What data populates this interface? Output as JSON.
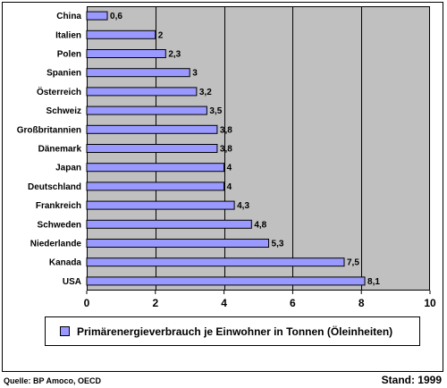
{
  "chart_data": {
    "type": "bar",
    "orientation": "horizontal",
    "categories": [
      "China",
      "Italien",
      "Polen",
      "Spanien",
      "Österreich",
      "Schweiz",
      "Großbritannien",
      "Dänemark",
      "Japan",
      "Deutschland",
      "Frankreich",
      "Schweden",
      "Niederlande",
      "Kanada",
      "USA"
    ],
    "values": [
      0.6,
      2,
      2.3,
      3,
      3.2,
      3.5,
      3.8,
      3.8,
      4,
      4,
      4.3,
      4.8,
      5.3,
      7.5,
      8.1
    ],
    "value_labels": [
      "0,6",
      "2",
      "2,3",
      "3",
      "3,2",
      "3,5",
      "3,8",
      "3,8",
      "4",
      "4",
      "4,3",
      "4,8",
      "5,3",
      "7,5",
      "8,1"
    ],
    "xlim": [
      0,
      10
    ],
    "xticks": [
      0,
      2,
      4,
      6,
      8,
      10
    ],
    "xtick_labels": [
      "0",
      "2",
      "4",
      "6",
      "8",
      "10"
    ],
    "grid": true,
    "legend_position": "bottom",
    "series": [
      {
        "name": "Primärenergieverbrauch je Einwohner in Tonnen (Öleinheiten)"
      }
    ],
    "colors": {
      "bar": "#9999ff",
      "plot_background": "#c0c0c0",
      "border": "#000000"
    }
  },
  "footer": {
    "source": "Quelle: BP Amoco, OECD",
    "stand": "Stand: 1999"
  }
}
